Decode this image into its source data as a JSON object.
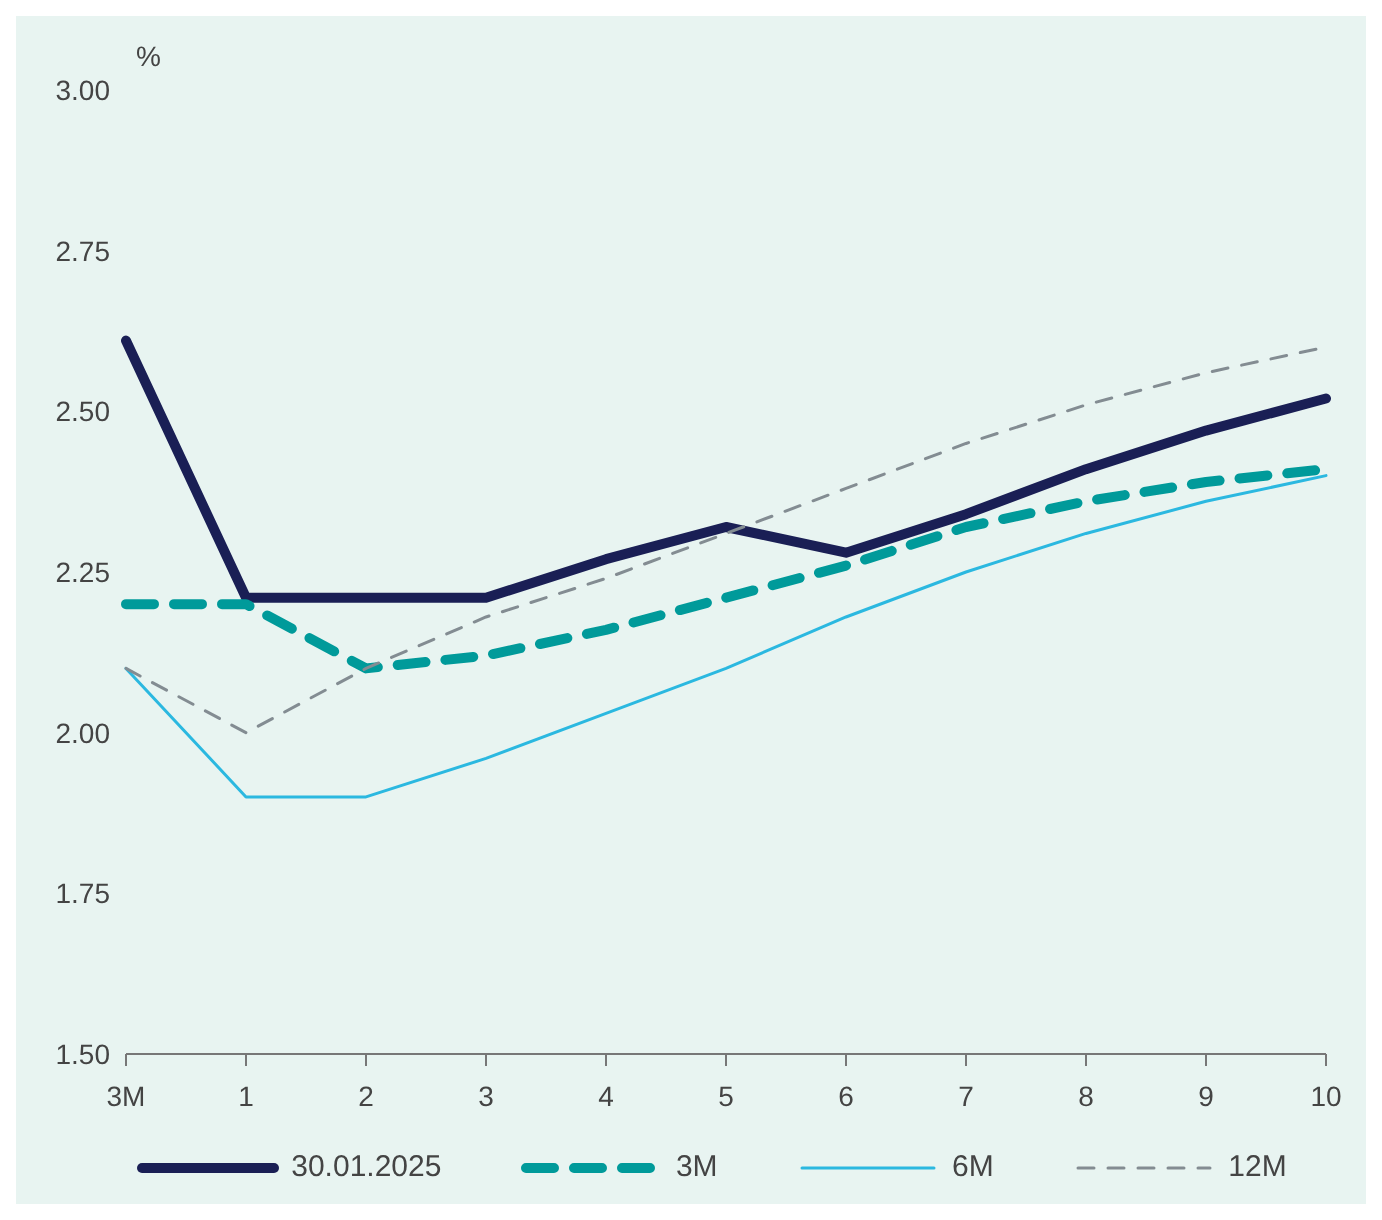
{
  "chart_data": {
    "type": "line",
    "ylabel": "%",
    "categories": [
      "3M",
      "1",
      "2",
      "3",
      "4",
      "5",
      "6",
      "7",
      "8",
      "9",
      "10"
    ],
    "series": [
      {
        "name": "30.01.2025",
        "color": "#1a1f55",
        "line_style": "solid",
        "values": [
          2.61,
          2.21,
          2.21,
          2.21,
          2.27,
          2.32,
          2.28,
          2.34,
          2.41,
          2.47,
          2.52
        ]
      },
      {
        "name": "3M",
        "color": "#009a9a",
        "line_style": "dashed",
        "values": [
          2.2,
          2.2,
          2.1,
          2.12,
          2.16,
          2.21,
          2.26,
          2.32,
          2.36,
          2.39,
          2.41
        ]
      },
      {
        "name": "6M",
        "color": "#2bb8e0",
        "line_style": "solid",
        "values": [
          2.1,
          1.9,
          1.9,
          1.96,
          2.03,
          2.1,
          2.18,
          2.25,
          2.31,
          2.36,
          2.4
        ]
      },
      {
        "name": "12M",
        "color": "#838c92",
        "line_style": "dashed",
        "values": [
          2.1,
          2.0,
          2.1,
          2.18,
          2.24,
          2.31,
          2.38,
          2.45,
          2.51,
          2.56,
          2.6
        ]
      }
    ],
    "ylim": [
      1.5,
      3.0
    ],
    "yticks": [
      {
        "value": 1.5,
        "label": "1.50"
      },
      {
        "value": 1.75,
        "label": "1.75"
      },
      {
        "value": 2.0,
        "label": "2.00"
      },
      {
        "value": 2.25,
        "label": "2.25"
      },
      {
        "value": 2.5,
        "label": "2.50"
      },
      {
        "value": 2.75,
        "label": "2.75"
      },
      {
        "value": 3.0,
        "label": "3.00"
      }
    ],
    "grid": false,
    "legend": "bottom",
    "marker": "none"
  }
}
